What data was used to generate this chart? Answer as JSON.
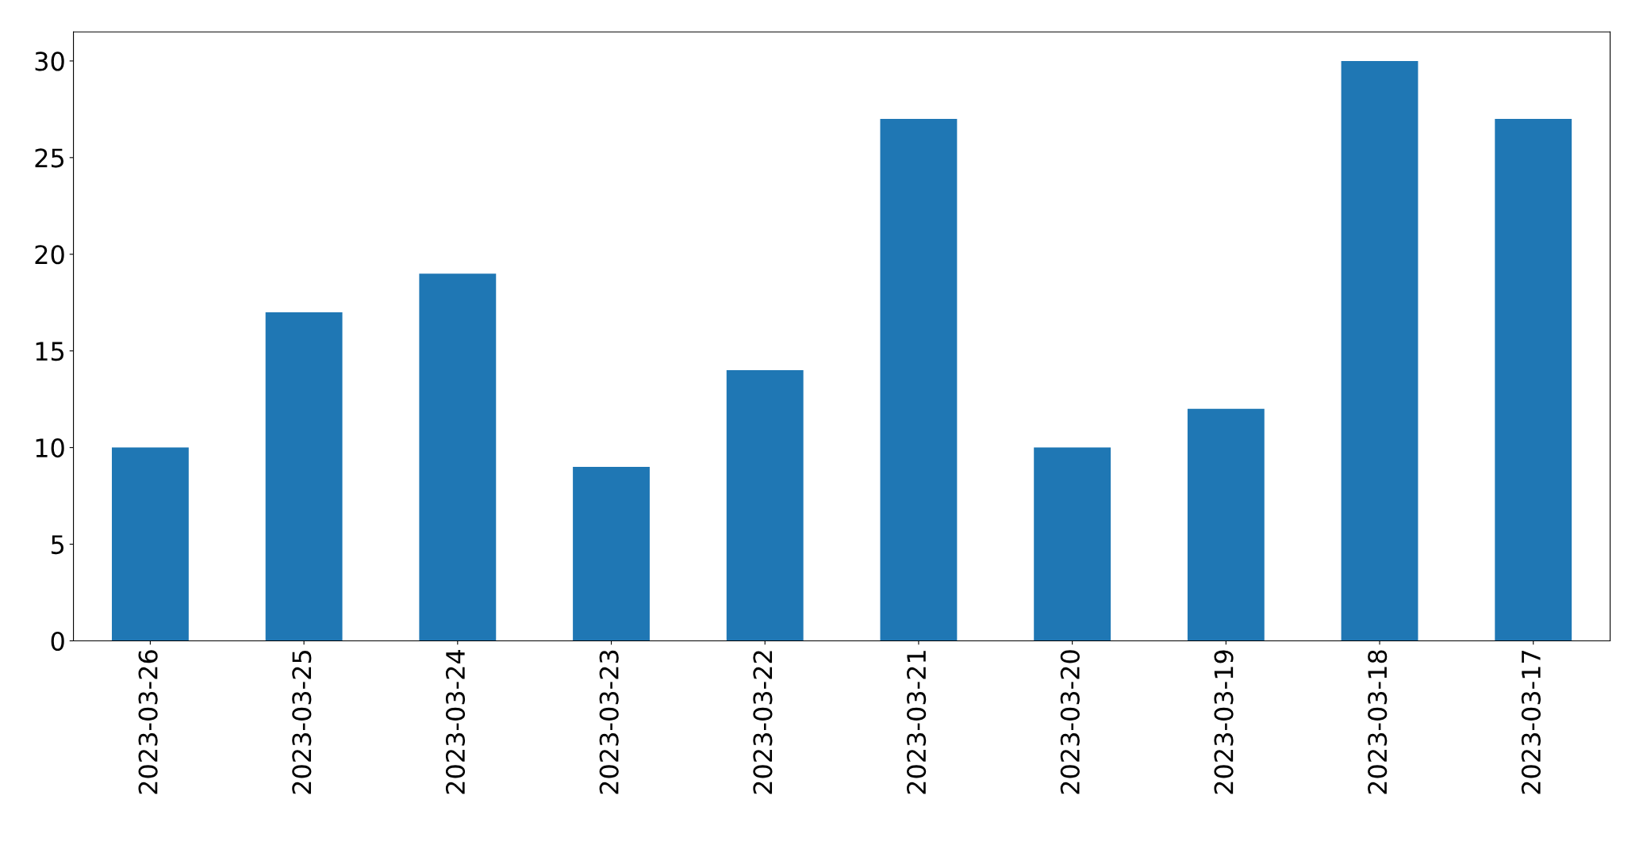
{
  "chart_data": {
    "type": "bar",
    "categories": [
      "2023-03-26",
      "2023-03-25",
      "2023-03-24",
      "2023-03-23",
      "2023-03-22",
      "2023-03-21",
      "2023-03-20",
      "2023-03-19",
      "2023-03-18",
      "2023-03-17"
    ],
    "values": [
      10,
      17,
      19,
      9,
      14,
      27,
      10,
      12,
      30,
      27
    ],
    "color": "#1f77b4",
    "ylim": [
      0,
      31.5
    ],
    "yticks": [
      0,
      5,
      10,
      15,
      20,
      25,
      30
    ],
    "grid": false,
    "legend": false
  }
}
